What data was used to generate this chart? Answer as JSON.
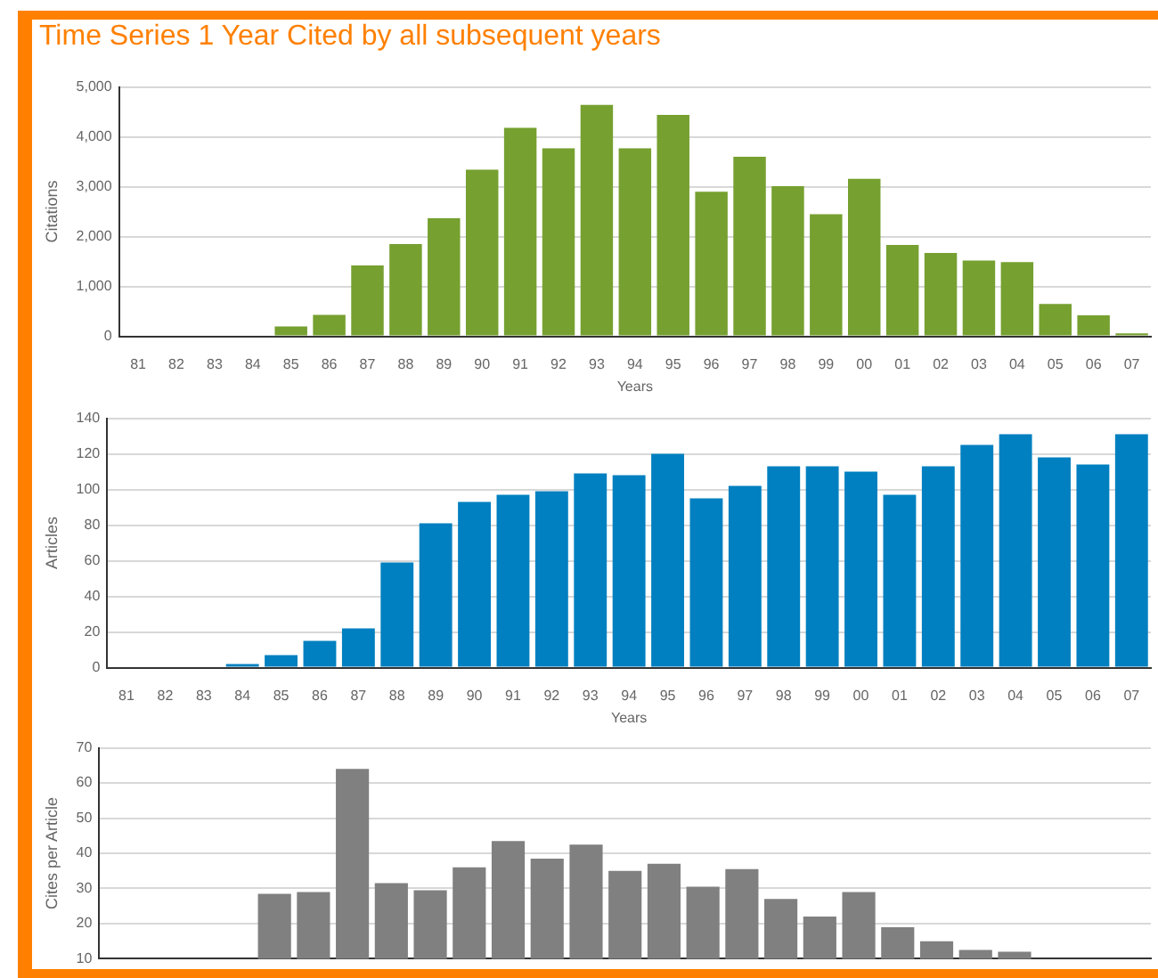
{
  "chart_data": [
    {
      "type": "bar",
      "title": "Time Series 1 Year Cited by all subsequent years",
      "xlabel": "Years",
      "ylabel": "Citations",
      "categories": [
        "81",
        "82",
        "83",
        "84",
        "85",
        "86",
        "87",
        "88",
        "89",
        "90",
        "91",
        "92",
        "93",
        "94",
        "95",
        "96",
        "97",
        "98",
        "99",
        "00",
        "01",
        "02",
        "03",
        "04",
        "05",
        "06",
        "07"
      ],
      "values": [
        0,
        0,
        0,
        null,
        200,
        430,
        1420,
        1850,
        2370,
        3340,
        4180,
        3770,
        4640,
        3770,
        4440,
        2900,
        3600,
        3010,
        2450,
        3160,
        1830,
        1670,
        1520,
        1490,
        650,
        420,
        60
      ],
      "color": "#76a030",
      "ylim": [
        0,
        5000
      ],
      "yticks": [
        0,
        {
          "value": 1000,
          "label": "1,000"
        },
        {
          "value": 2000,
          "label": "2,000"
        },
        {
          "value": 3000,
          "label": "3,000"
        },
        {
          "value": 4000,
          "label": "4,000"
        },
        {
          "value": 5000,
          "label": "5,000"
        }
      ],
      "grid": "y"
    },
    {
      "type": "bar",
      "xlabel": "Years",
      "ylabel": "Articles",
      "categories": [
        "81",
        "82",
        "83",
        "84",
        "85",
        "86",
        "87",
        "88",
        "89",
        "90",
        "91",
        "92",
        "93",
        "94",
        "95",
        "96",
        "97",
        "98",
        "99",
        "00",
        "01",
        "02",
        "03",
        "04",
        "05",
        "06",
        "07"
      ],
      "values": [
        0,
        0,
        0,
        2,
        7,
        15,
        22,
        59,
        81,
        93,
        97,
        99,
        109,
        108,
        120,
        95,
        102,
        113,
        113,
        110,
        97,
        113,
        125,
        131,
        118,
        114,
        131
      ],
      "color": "#0080c0",
      "ylim": [
        0,
        140
      ],
      "yticks": [
        0,
        20,
        40,
        60,
        80,
        100,
        120,
        140
      ],
      "grid": "y"
    },
    {
      "type": "bar",
      "ylabel": "Cites per Article",
      "categories": [
        "81",
        "82",
        "83",
        "84",
        "85",
        "86",
        "87",
        "88",
        "89",
        "90",
        "91",
        "92",
        "93",
        "94",
        "95",
        "96",
        "97",
        "98",
        "99",
        "00",
        "01",
        "02",
        "03",
        "04",
        "05",
        "06",
        "07"
      ],
      "values": [
        null,
        null,
        null,
        null,
        28.5,
        29,
        64,
        31.5,
        29.5,
        36,
        43.5,
        38.5,
        42.5,
        35,
        37,
        30.5,
        35.5,
        27,
        22,
        29,
        19,
        15,
        12.5,
        12,
        null,
        null,
        null
      ],
      "color": "#808080",
      "ylim": [
        10,
        70
      ],
      "yticks": [
        10,
        20,
        30,
        40,
        50,
        60,
        70
      ],
      "grid": "y",
      "tick_labels": "y"
    }
  ]
}
